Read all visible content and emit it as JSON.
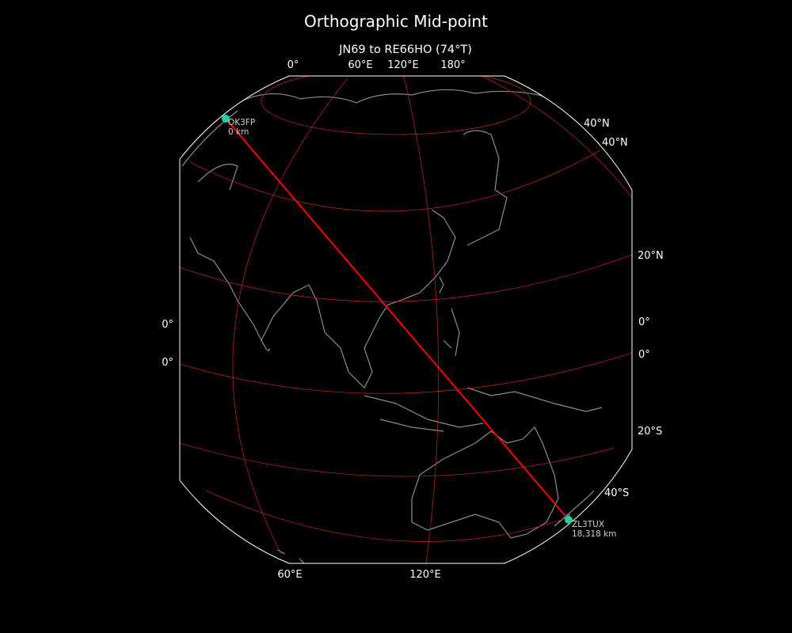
{
  "title": "Orthographic Mid-point",
  "subtitle": "JN69 to RE66HO (74°T)",
  "colors": {
    "background": "#000000",
    "path": "#ff0000",
    "gridlines": "#b22222",
    "coastlines": "#8c8c8c",
    "station_marker": "#1ed3a0",
    "boundary": "#ffffff"
  },
  "ticks": {
    "top": [
      "0°",
      "60°E",
      "120°E",
      "180°"
    ],
    "right": [
      "40°N",
      "40°N",
      "20°N",
      "0°",
      "0°",
      "20°S",
      "40°S"
    ],
    "left": [
      "0°",
      "0°"
    ],
    "bottom": [
      "60°E",
      "120°E"
    ]
  },
  "stations": [
    {
      "call": "OK3FP",
      "distance": "0 km"
    },
    {
      "call": "ZL3TUX",
      "distance": "18,318 km"
    }
  ]
}
